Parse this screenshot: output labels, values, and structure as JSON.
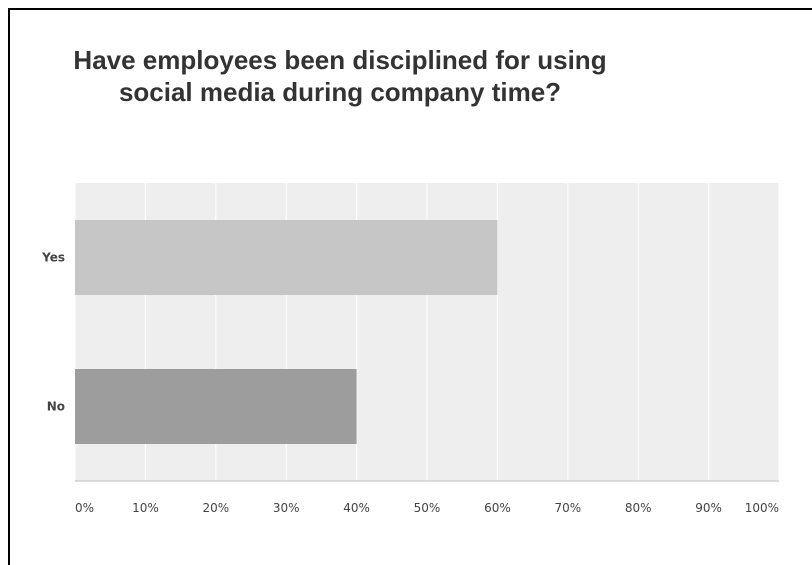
{
  "chart_data": {
    "type": "bar",
    "orientation": "horizontal",
    "title_lines": [
      "Have employees been disciplined for using",
      "social media during company time?"
    ],
    "categories": [
      "Yes",
      "No"
    ],
    "values": [
      60,
      40
    ],
    "colors": [
      "#c6c6c6",
      "#9d9d9d"
    ],
    "xticks": [
      "0%",
      "10%",
      "20%",
      "30%",
      "40%",
      "50%",
      "60%",
      "70%",
      "80%",
      "90%",
      "100%"
    ],
    "xlim": [
      0,
      100
    ],
    "grid": true,
    "legend": "none",
    "background": "#eeeeee"
  }
}
